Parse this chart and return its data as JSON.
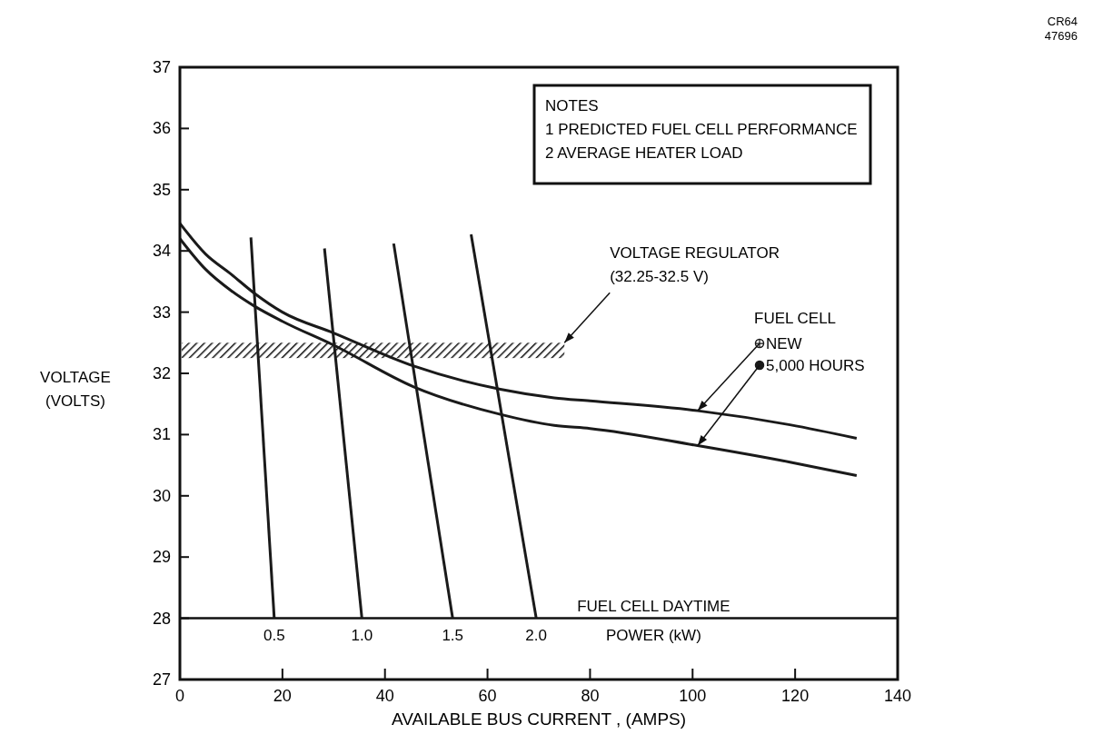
{
  "chart_data": {
    "type": "line",
    "xlabel": "AVAILABLE BUS CURRENT , (AMPS)",
    "ylabel": "VOLTAGE\n(VOLTS)",
    "legend_title": "FUEL CELL",
    "legend": "right",
    "xlim": [
      0,
      140
    ],
    "xticks": [
      0,
      20,
      40,
      60,
      80,
      100,
      120,
      140
    ],
    "ylim": [
      27,
      37
    ],
    "yticks": [
      27,
      28,
      29,
      30,
      31,
      32,
      33,
      34,
      35,
      36,
      37
    ],
    "grid": false,
    "marker": "none",
    "line_style": "solid",
    "series": [
      {
        "name": "NEW",
        "color": "#1a1a1a",
        "x": [
          0,
          5,
          10,
          14.5,
          20,
          30,
          45.6,
          62.5,
          73,
          80,
          101,
          119,
          132
        ],
        "values": [
          34.45,
          33.95,
          33.62,
          33.31,
          33.0,
          32.66,
          32.12,
          31.74,
          31.6,
          31.55,
          31.39,
          31.16,
          30.94
        ]
      },
      {
        "name": "5,000 HOURS",
        "color": "#1a1a1a",
        "x": [
          0,
          5,
          10,
          14.5,
          20,
          30,
          45.6,
          62.5,
          73,
          80,
          101,
          119,
          132
        ],
        "values": [
          34.2,
          33.7,
          33.35,
          33.1,
          32.85,
          32.46,
          31.78,
          31.33,
          31.15,
          31.1,
          30.82,
          30.55,
          30.33
        ]
      },
      {
        "name": "0.5",
        "color": "#1a1a1a",
        "x": [
          13.85,
          18.4
        ],
        "values": [
          34.22,
          28
        ]
      },
      {
        "name": "1.0",
        "color": "#1a1a1a",
        "x": [
          28.2,
          35.5
        ],
        "values": [
          34.04,
          28
        ]
      },
      {
        "name": "1.5",
        "color": "#1a1a1a",
        "x": [
          41.7,
          53.2
        ],
        "values": [
          34.12,
          28
        ]
      },
      {
        "name": "2.0",
        "color": "#1a1a1a",
        "x": [
          56.8,
          69.5
        ],
        "values": [
          34.27,
          28
        ]
      }
    ],
    "ref_lines": [
      {
        "axis": "y",
        "value": 28,
        "label": "FUEL CELL DAYTIME\nPOWER (kW)"
      }
    ],
    "bands": [
      {
        "axis": "y",
        "from": 32.25,
        "to": 32.5
      }
    ],
    "annotations": [
      {
        "text": "VOLTAGE REGULATOR\n(32.25-32.5 V)",
        "x": 75,
        "y": 32.5
      },
      "NOTES\n1  PREDICTED FUEL CELL PERFORMANCE\n2  AVERAGE HEATER LOAD",
      "CR64\n47696"
    ]
  }
}
